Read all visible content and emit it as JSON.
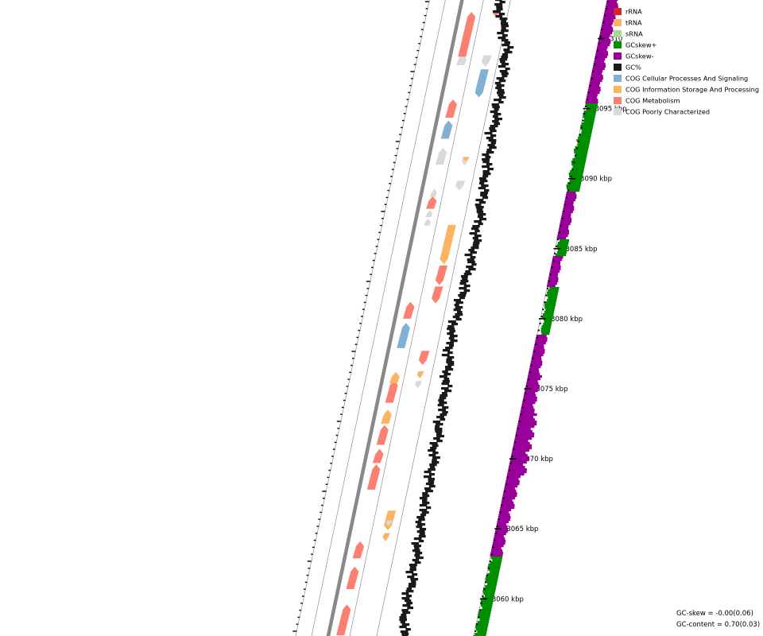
{
  "legend": [
    {
      "label": "rRNA",
      "color": "#d62728"
    },
    {
      "label": "tRNA",
      "color": "#fdb462"
    },
    {
      "label": "sRNA",
      "color": "#a6d996"
    },
    {
      "label": "GCskew+",
      "color": "#008f00"
    },
    {
      "label": "GCskew-",
      "color": "#990099"
    },
    {
      "label": "GC%",
      "color": "#1a1a1a"
    },
    {
      "label": "COG Cellular Processes And Signaling",
      "color": "#80b1d3"
    },
    {
      "label": "COG Information Storage And Processing",
      "color": "#fdb462"
    },
    {
      "label": "COG Metabolism",
      "color": "#fb8072"
    },
    {
      "label": "COG Poorly Characterized",
      "color": "#d9d9d9"
    }
  ],
  "stats": {
    "gc_skew": "GC-skew = -0.00(0.06)",
    "gc_content": "GC-content = 0.70(0.03)"
  },
  "chart_data": {
    "type": "circular-genome-map-zoom",
    "unit": "kbp",
    "tick_labels": [
      "3060 kbp",
      "3065 kbp",
      "3070 kbp",
      "3075 kbp",
      "3080 kbp",
      "3085 kbp",
      "3090 kbp",
      "3095 kbp",
      "310"
    ],
    "features": [
      {
        "kb": 3058.5,
        "len": 2.2,
        "strand": 1,
        "cog": "COG Metabolism"
      },
      {
        "kb": 3061.5,
        "len": 1.6,
        "strand": 1,
        "cog": "COG Metabolism"
      },
      {
        "kb": 3063.5,
        "len": 1.2,
        "strand": 1,
        "cog": "COG Metabolism"
      },
      {
        "kb": 3064.4,
        "len": 0.6,
        "strand": -1,
        "cog": "tRNA"
      },
      {
        "kb": 3065.6,
        "len": 1.4,
        "strand": -1,
        "cog": "COG Information Storage And Processing"
      },
      {
        "kb": 3065.4,
        "len": 0.4,
        "strand": -1,
        "cog": "COG Poorly Characterized"
      },
      {
        "kb": 3068.7,
        "len": 1.8,
        "strand": 1,
        "cog": "COG Metabolism"
      },
      {
        "kb": 3070.2,
        "len": 1.0,
        "strand": 1,
        "cog": "COG Metabolism"
      },
      {
        "kb": 3071.7,
        "len": 1.4,
        "strand": 1,
        "cog": "COG Metabolism"
      },
      {
        "kb": 3073.0,
        "len": 1.0,
        "strand": 1,
        "cog": "COG Information Storage And Processing"
      },
      {
        "kb": 3074.8,
        "len": 1.6,
        "strand": 1,
        "cog": "COG Metabolism"
      },
      {
        "kb": 3075.8,
        "len": 0.8,
        "strand": 1,
        "cog": "COG Information Storage And Processing"
      },
      {
        "kb": 3075.3,
        "len": 0.5,
        "strand": -1,
        "cog": "COG Poorly Characterized"
      },
      {
        "kb": 3076.0,
        "len": 0.5,
        "strand": -1,
        "cog": "COG Information Storage And Processing"
      },
      {
        "kb": 3077.2,
        "len": 1.0,
        "strand": -1,
        "cog": "COG Metabolism"
      },
      {
        "kb": 3078.8,
        "len": 1.8,
        "strand": 1,
        "cog": "COG Cellular Processes And Signaling"
      },
      {
        "kb": 3080.6,
        "len": 1.2,
        "strand": 1,
        "cog": "COG Metabolism"
      },
      {
        "kb": 3081.7,
        "len": 1.2,
        "strand": -1,
        "cog": "COG Metabolism"
      },
      {
        "kb": 3083.1,
        "len": 1.4,
        "strand": -1,
        "cog": "COG Metabolism"
      },
      {
        "kb": 3085.3,
        "len": 2.8,
        "strand": -1,
        "cog": "COG Information Storage And Processing"
      },
      {
        "kb": 3086.9,
        "len": 0.5,
        "strand": 1,
        "cog": "COG Poorly Characterized"
      },
      {
        "kb": 3087.5,
        "len": 0.5,
        "strand": 1,
        "cog": "COG Poorly Characterized"
      },
      {
        "kb": 3088.3,
        "len": 0.9,
        "strand": 1,
        "cog": "COG Metabolism"
      },
      {
        "kb": 3089.0,
        "len": 0.6,
        "strand": 1,
        "cog": "COG Poorly Characterized"
      },
      {
        "kb": 3089.5,
        "len": 0.7,
        "strand": -1,
        "cog": "COG Poorly Characterized"
      },
      {
        "kb": 3091.2,
        "len": 0.5,
        "strand": -1,
        "cog": "COG Poorly Characterized"
      },
      {
        "kb": 3091.6,
        "len": 1.2,
        "strand": 1,
        "cog": "COG Poorly Characterized"
      },
      {
        "kb": 3091.4,
        "len": 0.3,
        "strand": -1,
        "cog": "tRNA"
      },
      {
        "kb": 3093.5,
        "len": 1.3,
        "strand": 1,
        "cog": "COG Cellular Processes And Signaling"
      },
      {
        "kb": 3095.0,
        "len": 1.3,
        "strand": 1,
        "cog": "COG Metabolism"
      },
      {
        "kb": 3096.8,
        "len": 2.0,
        "strand": -1,
        "cog": "COG Cellular Processes And Signaling"
      },
      {
        "kb": 3098.5,
        "len": 0.8,
        "strand": 1,
        "cog": "COG Poorly Characterized"
      },
      {
        "kb": 3098.4,
        "len": 0.8,
        "strand": -1,
        "cog": "COG Poorly Characterized"
      },
      {
        "kb": 3100.3,
        "len": 3.2,
        "strand": 1,
        "cog": "COG Metabolism"
      },
      {
        "kb": 3101.8,
        "len": 0.5,
        "strand": -1,
        "cog": "COG Metabolism"
      }
    ]
  }
}
